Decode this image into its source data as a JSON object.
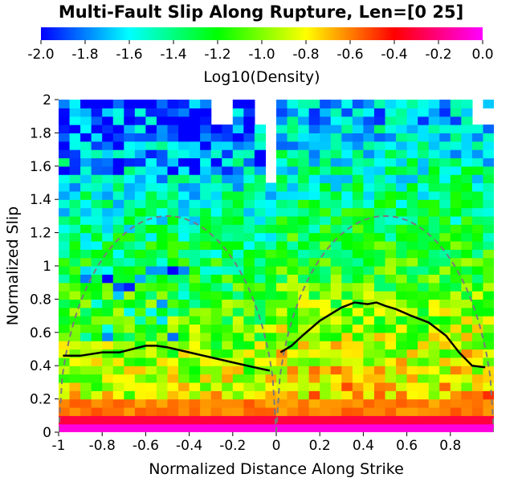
{
  "chart_data": {
    "type": "heatmap",
    "title": "Multi-Fault Slip Along Rupture, Len=[0 25]",
    "xlabel": "Normalized Distance Along Strike",
    "ylabel": "Normalized Slip",
    "xlim": [
      -1,
      1
    ],
    "ylim": [
      0,
      2
    ],
    "x_ticks": [
      "-1",
      "-0.8",
      "-0.6",
      "-0.4",
      "-0.2",
      "0",
      "0.2",
      "0.4",
      "0.6",
      "0.8"
    ],
    "y_ticks": [
      "0",
      "0.2",
      "0.4",
      "0.6",
      "0.8",
      "1",
      "1.2",
      "1.4",
      "1.6",
      "1.8",
      "2"
    ],
    "colorbar": {
      "label": "Log10(Density)",
      "range": [
        -2.0,
        0.0
      ],
      "ticks": [
        "-2.0",
        "-1.8",
        "-1.6",
        "-1.4",
        "-1.2",
        "-1.0",
        "-0.8",
        "-0.6",
        "-0.4",
        "-0.2",
        "0.0"
      ],
      "colormap": [
        "#0000ff",
        "#00ffff",
        "#00ff00",
        "#ffff00",
        "#ff0000",
        "#ff00ff"
      ],
      "position": "top"
    },
    "grid": false,
    "mean_slip_left": {
      "x": [
        -0.98,
        -0.9,
        -0.8,
        -0.72,
        -0.66,
        -0.6,
        -0.55,
        -0.5,
        -0.4,
        -0.3,
        -0.2,
        -0.1,
        -0.03
      ],
      "y": [
        0.46,
        0.46,
        0.48,
        0.48,
        0.5,
        0.52,
        0.52,
        0.51,
        0.48,
        0.45,
        0.42,
        0.39,
        0.37
      ]
    },
    "mean_slip_right": {
      "x": [
        0.02,
        0.07,
        0.12,
        0.2,
        0.3,
        0.36,
        0.42,
        0.46,
        0.5,
        0.55,
        0.62,
        0.7,
        0.78,
        0.84,
        0.9,
        0.96
      ],
      "y": [
        0.48,
        0.52,
        0.58,
        0.67,
        0.75,
        0.78,
        0.77,
        0.78,
        0.76,
        0.74,
        0.7,
        0.66,
        0.58,
        0.48,
        0.4,
        0.39
      ]
    },
    "envelope_left": {
      "x_range": [
        -1,
        0
      ],
      "peak_x": -0.5,
      "peak_y": 1.3
    },
    "envelope_right": {
      "x_range": [
        0,
        1
      ],
      "peak_x": 0.5,
      "peak_y": 1.3
    },
    "heatmap": {
      "nx": 40,
      "ny": 40,
      "x_range": [
        -1,
        1
      ],
      "y_range": [
        0,
        2
      ],
      "description_values": "log10 density per cell; bands highest at low slip, lower toward high slip; gaps (no data) near top around x=-0.4 to 0 and x=0.9 to 1"
    }
  }
}
